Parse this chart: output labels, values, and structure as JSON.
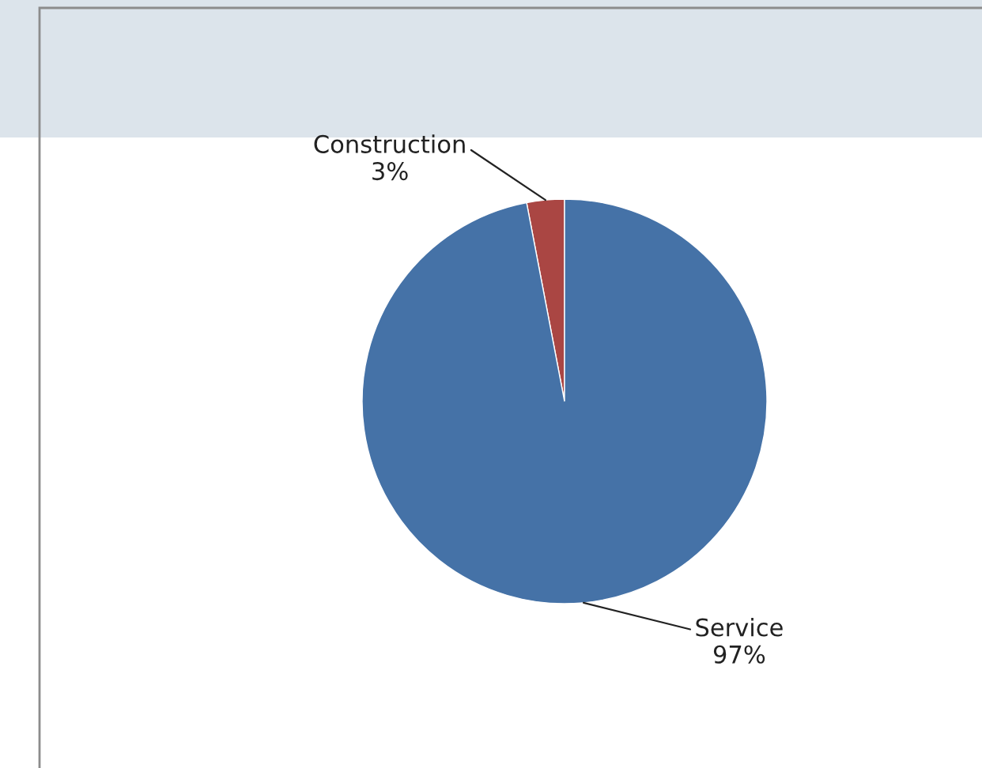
{
  "chart_data": {
    "type": "pie",
    "categories": [
      "Construction",
      "Service"
    ],
    "values": [
      3,
      97
    ],
    "colors": [
      "#aa4643",
      "#4572a7"
    ],
    "value_labels": [
      "3%",
      "97%"
    ]
  }
}
